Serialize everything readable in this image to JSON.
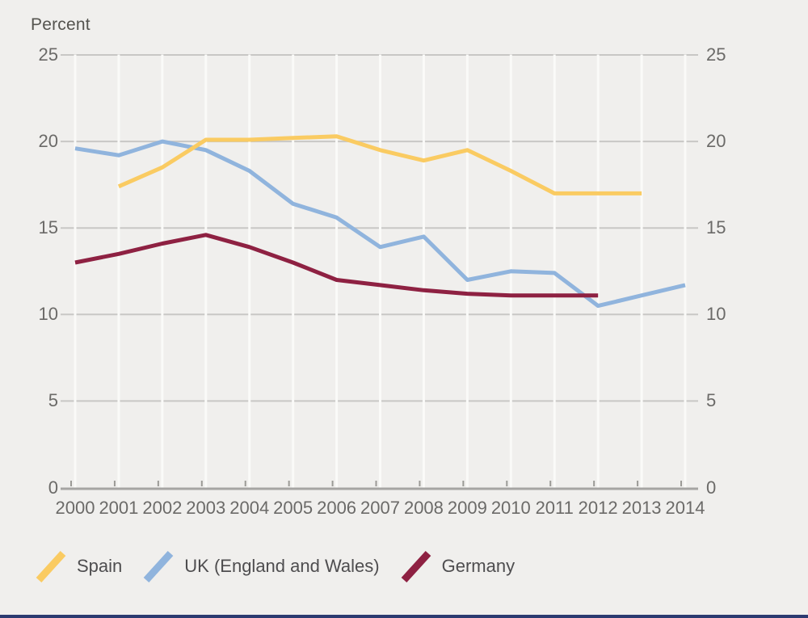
{
  "page": {
    "background_color": "#F0EFED",
    "bottom_bar_color": "#2B3A70"
  },
  "chart_data": {
    "type": "line",
    "title": "",
    "ylabel": "Percent",
    "xlabel": "",
    "x_years": [
      2000,
      2001,
      2002,
      2003,
      2004,
      2005,
      2006,
      2007,
      2008,
      2009,
      2010,
      2011,
      2012,
      2013,
      2014
    ],
    "ylim": [
      0,
      25
    ],
    "yticks": [
      25,
      20,
      15,
      10,
      5,
      0
    ],
    "yticks_shown_on": "both left and right sides",
    "grid": "horizontal gray gridlines, vertical white gridlines per year",
    "legend_position": "bottom-left",
    "series": [
      {
        "name": "Spain",
        "color": "#FACB62",
        "start_year": 2001,
        "values": [
          17.4,
          18.5,
          20.1,
          20.1,
          20.2,
          20.3,
          19.5,
          18.9,
          19.5,
          18.3,
          17.0,
          17.0,
          17.0
        ]
      },
      {
        "name": "UK (England and Wales)",
        "color": "#90B4DD",
        "start_year": 2000,
        "values": [
          19.6,
          19.2,
          20.0,
          19.5,
          18.3,
          16.4,
          15.6,
          13.9,
          14.5,
          12.0,
          12.5,
          12.4,
          10.5,
          11.1,
          11.7
        ]
      },
      {
        "name": "Germany",
        "color": "#8E2142",
        "start_year": 2000,
        "values": [
          13.0,
          13.5,
          14.1,
          14.6,
          13.9,
          13.0,
          12.0,
          11.7,
          11.4,
          11.2,
          11.1,
          11.1,
          11.1
        ]
      }
    ],
    "style_colors": {
      "grid_horizontal": "#C8C7C5",
      "grid_vertical": "#FAFAF8",
      "axis_line": "#A6A5A3",
      "tick_mark": "#9B9A96",
      "tick_text": "#6B6A68",
      "legend_text": "#4E4D4F"
    }
  }
}
